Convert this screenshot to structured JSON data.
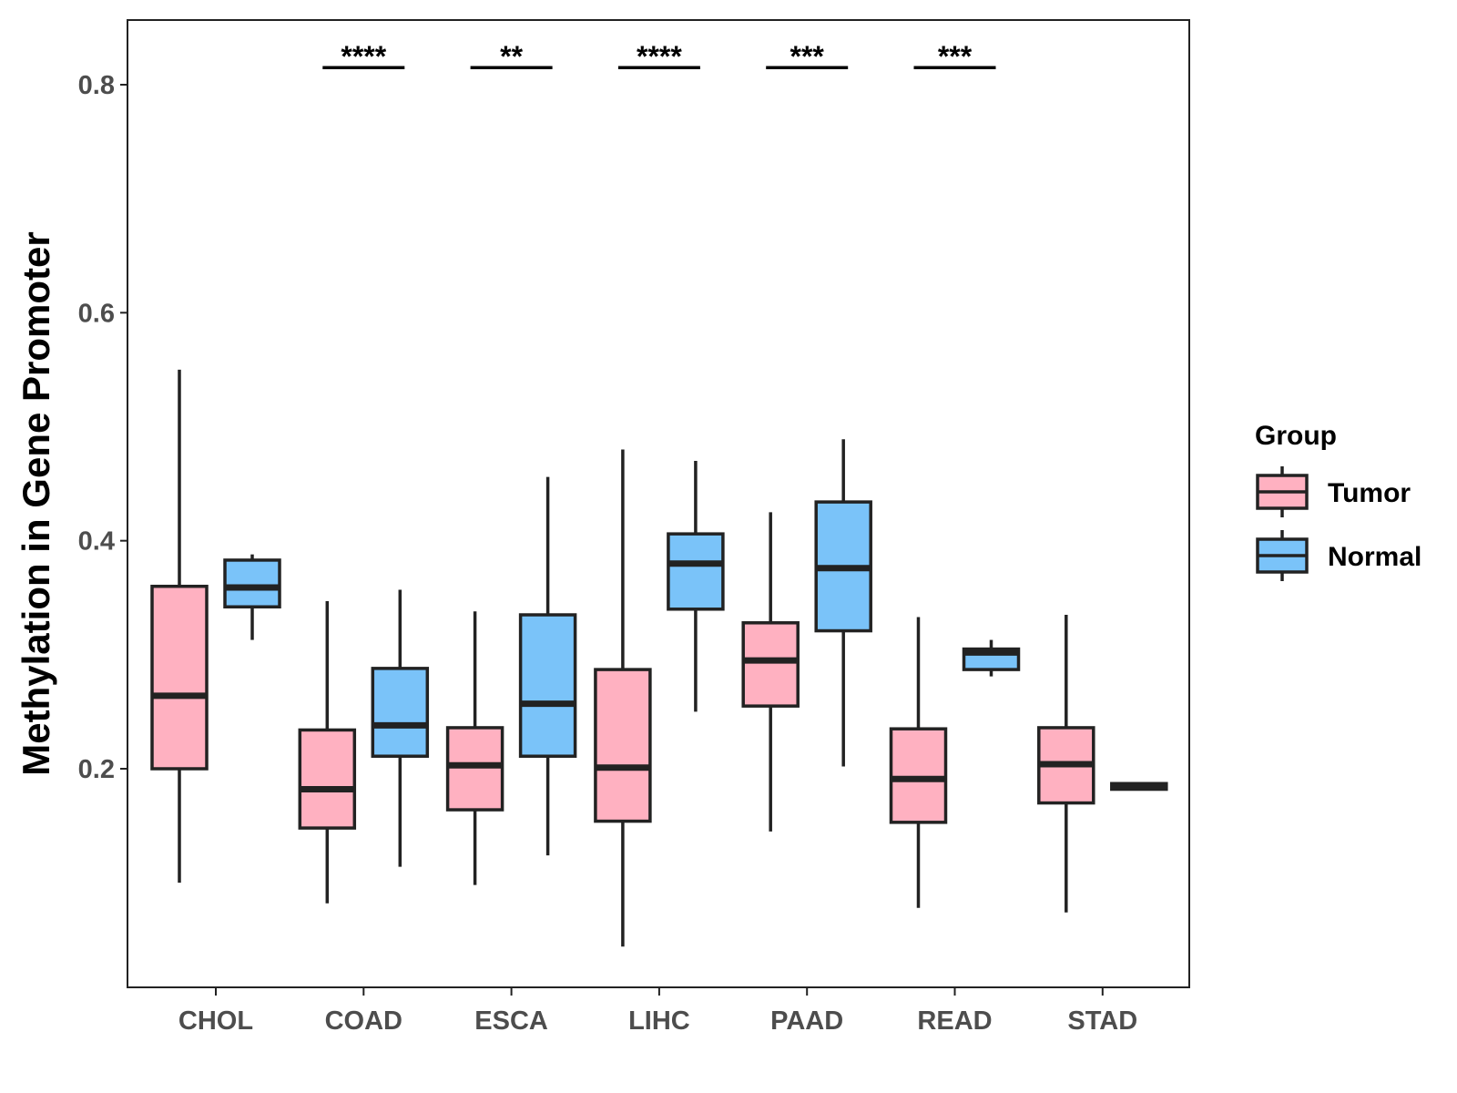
{
  "chart_data": {
    "type": "boxplot",
    "ylabel": "Methylation in Gene Promoter",
    "xlabel": "",
    "ylim": [
      0.015,
      0.86
    ],
    "yticks": [
      0.2,
      0.4,
      0.6,
      0.8
    ],
    "ytick_labels": [
      "0.2",
      "0.4",
      "0.6",
      "0.8"
    ],
    "categories": [
      "CHOL",
      "COAD",
      "ESCA",
      "LIHC",
      "PAAD",
      "READ",
      "STAD"
    ],
    "legend": {
      "title": "Group",
      "entries": [
        "Tumor",
        "Normal"
      ],
      "position": "right"
    },
    "series": [
      {
        "name": "Tumor",
        "color": "#FFB1C1",
        "boxes": [
          {
            "category": "CHOL",
            "whisker_low": 0.1,
            "q1": 0.2,
            "median": 0.264,
            "q3": 0.36,
            "whisker_high": 0.55
          },
          {
            "category": "COAD",
            "whisker_low": 0.082,
            "q1": 0.148,
            "median": 0.182,
            "q3": 0.234,
            "whisker_high": 0.347
          },
          {
            "category": "ESCA",
            "whisker_low": 0.098,
            "q1": 0.164,
            "median": 0.203,
            "q3": 0.236,
            "whisker_high": 0.338
          },
          {
            "category": "LIHC",
            "whisker_low": 0.044,
            "q1": 0.154,
            "median": 0.201,
            "q3": 0.287,
            "whisker_high": 0.48
          },
          {
            "category": "PAAD",
            "whisker_low": 0.145,
            "q1": 0.255,
            "median": 0.295,
            "q3": 0.328,
            "whisker_high": 0.425
          },
          {
            "category": "READ",
            "whisker_low": 0.078,
            "q1": 0.153,
            "median": 0.191,
            "q3": 0.235,
            "whisker_high": 0.333
          },
          {
            "category": "STAD",
            "whisker_low": 0.074,
            "q1": 0.17,
            "median": 0.204,
            "q3": 0.236,
            "whisker_high": 0.335
          }
        ]
      },
      {
        "name": "Normal",
        "color": "#7AC3F9",
        "boxes": [
          {
            "category": "CHOL",
            "whisker_low": 0.313,
            "q1": 0.342,
            "median": 0.359,
            "q3": 0.383,
            "whisker_high": 0.388
          },
          {
            "category": "COAD",
            "whisker_low": 0.114,
            "q1": 0.211,
            "median": 0.238,
            "q3": 0.288,
            "whisker_high": 0.357
          },
          {
            "category": "ESCA",
            "whisker_low": 0.124,
            "q1": 0.211,
            "median": 0.257,
            "q3": 0.335,
            "whisker_high": 0.456
          },
          {
            "category": "LIHC",
            "whisker_low": 0.25,
            "q1": 0.34,
            "median": 0.38,
            "q3": 0.406,
            "whisker_high": 0.47
          },
          {
            "category": "PAAD",
            "whisker_low": 0.202,
            "q1": 0.321,
            "median": 0.376,
            "q3": 0.434,
            "whisker_high": 0.489
          },
          {
            "category": "READ",
            "whisker_low": 0.281,
            "q1": 0.287,
            "median": 0.302,
            "q3": 0.305,
            "whisker_high": 0.313
          },
          {
            "category": "STAD",
            "whisker_low": 0.181,
            "q1": 0.182,
            "median": 0.185,
            "q3": 0.187,
            "whisker_high": 0.188
          }
        ]
      }
    ],
    "significance": [
      {
        "category": "COAD",
        "label": "****"
      },
      {
        "category": "ESCA",
        "label": "**"
      },
      {
        "category": "LIHC",
        "label": "****"
      },
      {
        "category": "PAAD",
        "label": "***"
      },
      {
        "category": "READ",
        "label": "***"
      }
    ],
    "significance_y": 0.815
  }
}
